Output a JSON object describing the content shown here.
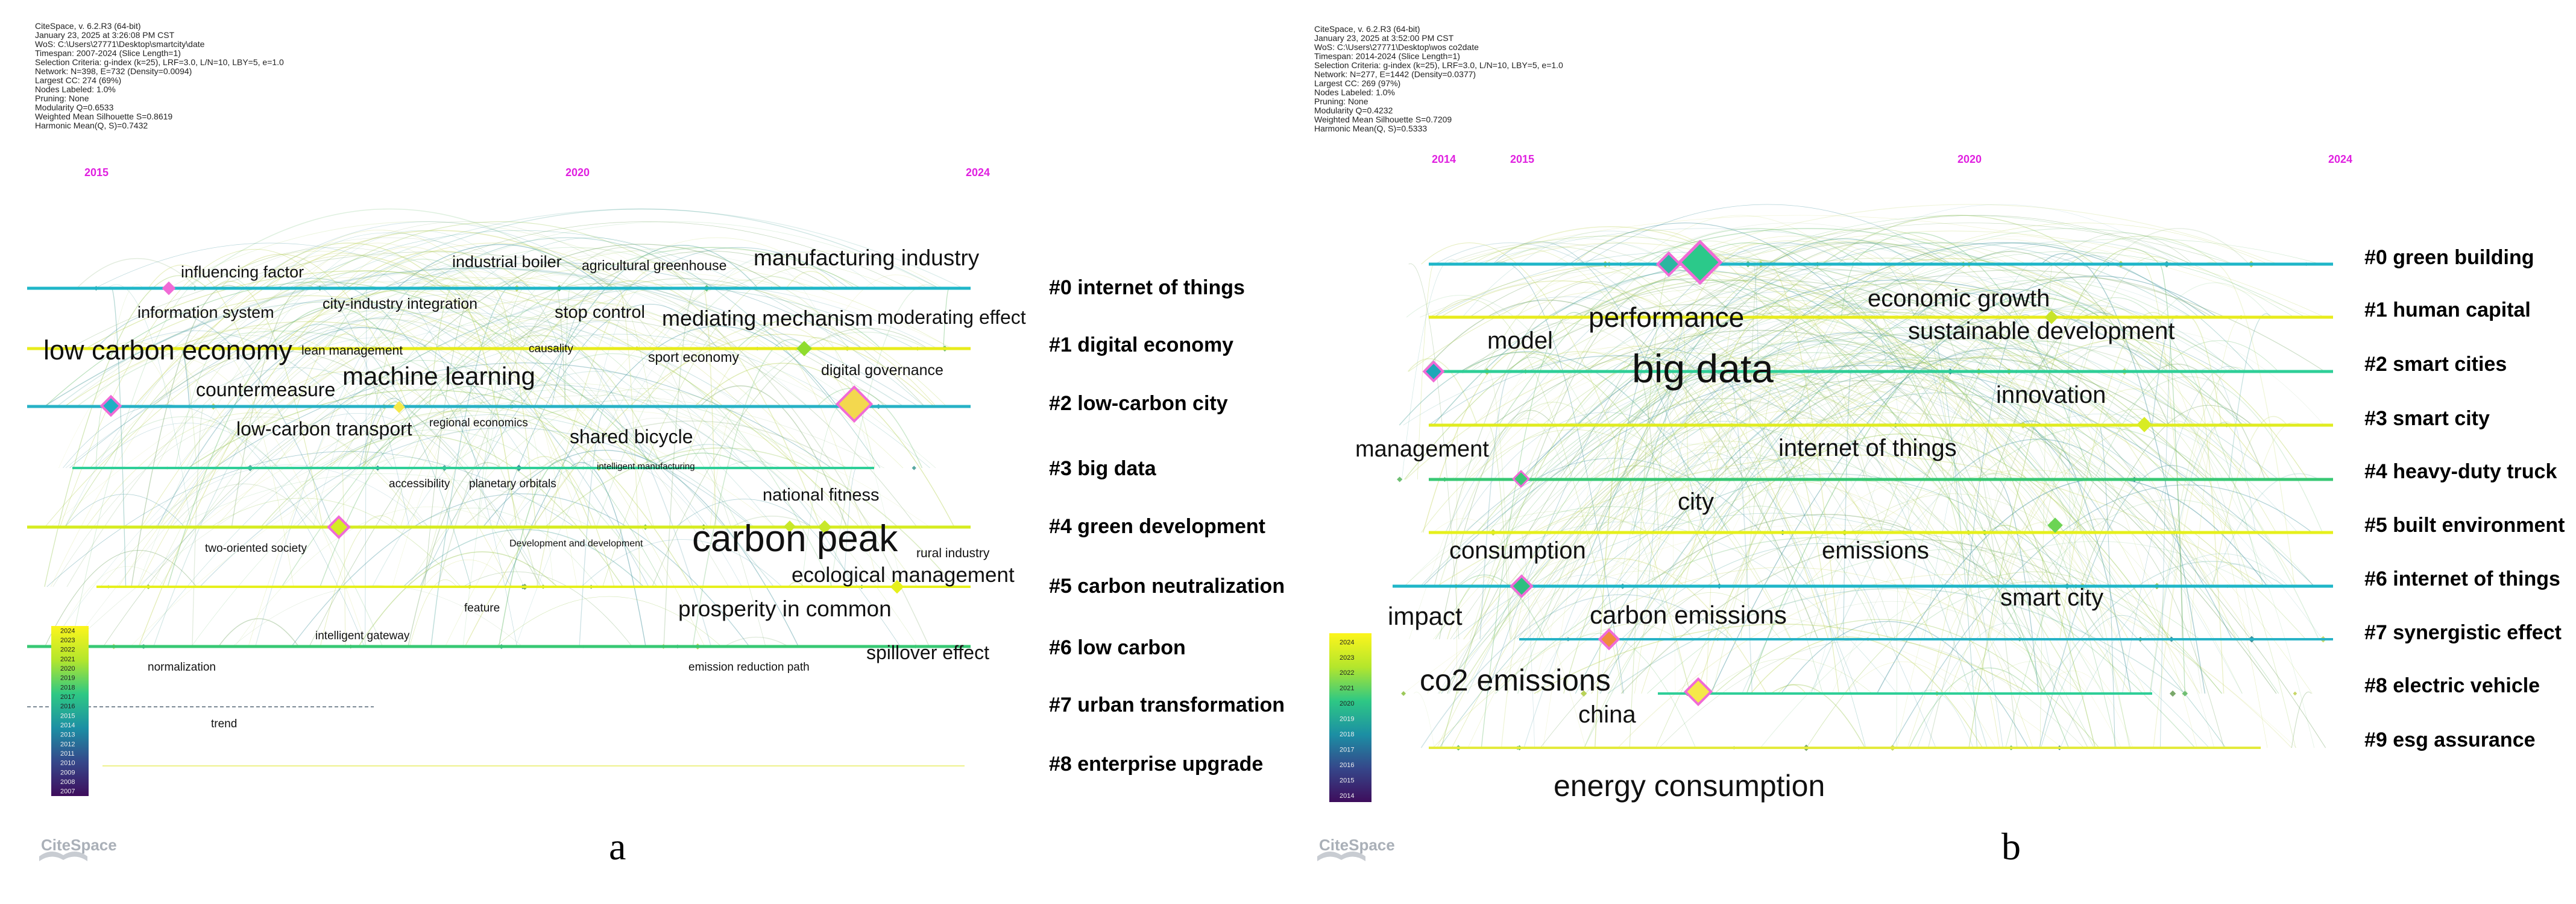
{
  "panels": [
    {
      "id": "a",
      "panel_label": "a",
      "meta": [
        "CiteSpace, v. 6.2.R3 (64-bit)",
        "January 23, 2025 at 3:26:08 PM CST",
        "WoS: C:\\Users\\27771\\Desktop\\smartcity\\date",
        "Timespan: 2007-2024 (Slice Length=1)",
        "Selection Criteria: g-index (k=25), LRF=3.0, L/N=10, LBY=5, e=1.0",
        "Network: N=398, E=732 (Density=0.0094)",
        "Largest CC: 274 (69%)",
        "Nodes Labeled: 1.0%",
        "Pruning: None",
        "Modularity Q=0.6533",
        "Weighted Mean Silhouette S=0.8619",
        "Harmonic Mean(Q, S)=0.7432"
      ],
      "years": [
        "2015",
        "2020",
        "2024"
      ],
      "clusters": [
        "#0 internet of things",
        "#1 digital economy",
        "#2 low-carbon city",
        "#3 big data",
        "#4 green development",
        "#5 carbon neutralization",
        "#6 low carbon",
        "#7 urban transformation",
        "#8 enterprise upgrade"
      ],
      "cluster_colors": [
        "#1fb6c8",
        "#e8ec1c",
        "#27b2c6",
        "#2fcf98",
        "#d6ec20",
        "#e6f01c",
        "#38c874",
        "#7d8a96",
        "#e4ea3c"
      ],
      "keywords": [
        "influencing factor",
        "industrial boiler",
        "agricultural greenhouse",
        "manufacturing industry",
        "information system",
        "city-industry integration",
        "stop control",
        "mediating mechanism",
        "moderating effect",
        "low carbon economy",
        "lean management",
        "causality",
        "sport economy",
        "digital governance",
        "countermeasure",
        "machine learning",
        "low-carbon transport",
        "regional economics",
        "shared bicycle",
        "intelligent manufacturing",
        "accessibility",
        "planetary orbitals",
        "national fitness",
        "two-oriented society",
        "Development and development",
        "carbon peak",
        "rural industry",
        "ecological management",
        "feature",
        "prosperity in common",
        "intelligent gateway",
        "normalization",
        "spillover effect",
        "emission reduction path",
        "trend"
      ],
      "legend_years": [
        "2024",
        "2023",
        "2022",
        "2021",
        "2020",
        "2019",
        "2018",
        "2017",
        "2016",
        "2015",
        "2014",
        "2013",
        "2012",
        "2011",
        "2010",
        "2009",
        "2008",
        "2007"
      ],
      "logo": "CiteSpace"
    },
    {
      "id": "b",
      "panel_label": "b",
      "meta": [
        "CiteSpace, v. 6.2.R3 (64-bit)",
        "January 23, 2025 at 3:52:00 PM CST",
        "WoS: C:\\Users\\27771\\Desktop\\wos co2date",
        "Timespan: 2014-2024 (Slice Length=1)",
        "Selection Criteria: g-index (k=25), LRF=3.0, L/N=10, LBY=5, e=1.0",
        "Network: N=277, E=1442 (Density=0.0377)",
        "Largest CC: 269 (97%)",
        "Nodes Labeled: 1.0%",
        "Pruning: None",
        "Modularity Q=0.4232",
        "Weighted Mean Silhouette S=0.7209",
        "Harmonic Mean(Q, S)=0.5333"
      ],
      "years": [
        "2014",
        "2015",
        "2020",
        "2024"
      ],
      "clusters": [
        "#0 green building",
        "#1 human capital",
        "#2 smart cities",
        "#3 smart city",
        "#4 heavy-duty truck",
        "#5 built environment",
        "#6 internet of things",
        "#7 synergistic effect",
        "#8 electric vehicle",
        "#9 esg assurance"
      ],
      "cluster_colors": [
        "#1fb6c8",
        "#e8ec1c",
        "#2fcf98",
        "#e0ec20",
        "#38c874",
        "#e6f01c",
        "#1fb6c8",
        "#27b2c6",
        "#2fcf98",
        "#e4ea3c"
      ],
      "keywords": [
        "performance",
        "economic growth",
        "model",
        "sustainable development",
        "big data",
        "innovation",
        "management",
        "internet of things",
        "city",
        "consumption",
        "emissions",
        "smart city",
        "impact",
        "carbon emissions",
        "co2 emissions",
        "china",
        "energy consumption"
      ],
      "legend_years": [
        "2024",
        "2023",
        "2022",
        "2021",
        "2020",
        "2019",
        "2018",
        "2017",
        "2016",
        "2015",
        "2014"
      ],
      "logo": "CiteSpace"
    }
  ]
}
